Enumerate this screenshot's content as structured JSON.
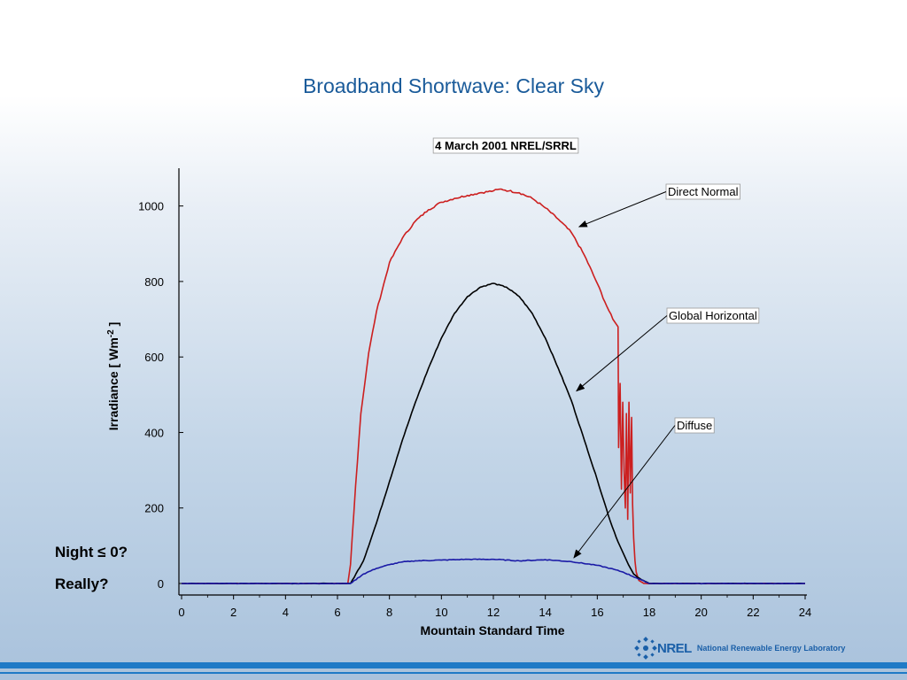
{
  "slide": {
    "title": "Broadband Shortwave:  Clear Sky",
    "notes": [
      "Night ≤ 0?",
      "Really?"
    ]
  },
  "logo": {
    "mark": "NREL",
    "text": "National Renewable Energy Laboratory",
    "color": "#1a5fa8"
  },
  "chart_data": {
    "type": "line",
    "title": "4 March 2001  NREL/SRRL",
    "xlabel": "Mountain Standard Time",
    "ylabel_main": "Irradiance [ Wm",
    "ylabel_sup": "-2",
    "ylabel_tail": " ]",
    "xlim": [
      0,
      24
    ],
    "ylim": [
      0,
      1100
    ],
    "xticks": [
      0,
      2,
      4,
      6,
      8,
      10,
      12,
      14,
      16,
      18,
      20,
      22,
      24
    ],
    "yticks": [
      0,
      200,
      400,
      600,
      800,
      1000
    ],
    "grid": false,
    "series": [
      {
        "name": "Direct Normal",
        "color": "#cc1f1f",
        "x": [
          0,
          3,
          6.4,
          6.5,
          6.7,
          6.9,
          7.2,
          7.5,
          8,
          8.5,
          9,
          9.5,
          10,
          10.5,
          11,
          11.5,
          12,
          12.3,
          12.6,
          13,
          13.5,
          14,
          14.5,
          15,
          15.5,
          16,
          16.3,
          16.6,
          16.8,
          16.82,
          16.88,
          16.93,
          16.98,
          17.03,
          17.08,
          17.12,
          17.17,
          17.22,
          17.27,
          17.32,
          17.36,
          17.4,
          17.45,
          17.5,
          17.6,
          17.8,
          18.5,
          24
        ],
        "values": [
          0,
          0,
          0,
          50,
          260,
          450,
          610,
          720,
          850,
          915,
          960,
          990,
          1010,
          1020,
          1028,
          1035,
          1040,
          1045,
          1040,
          1035,
          1020,
          995,
          965,
          930,
          870,
          795,
          745,
          700,
          680,
          360,
          530,
          250,
          480,
          300,
          200,
          450,
          170,
          480,
          240,
          440,
          210,
          120,
          60,
          30,
          8,
          0,
          0,
          0
        ]
      },
      {
        "name": "Global Horizontal",
        "color": "#000000",
        "x": [
          0,
          3,
          6.5,
          7,
          7.5,
          8,
          8.5,
          9,
          9.5,
          10,
          10.5,
          11,
          11.5,
          12,
          12.5,
          13,
          13.5,
          14,
          14.5,
          15,
          15.5,
          16,
          16.5,
          16.8,
          17,
          17.2,
          17.4,
          17.7,
          18,
          24
        ],
        "values": [
          0,
          0,
          0,
          60,
          160,
          270,
          380,
          480,
          570,
          650,
          715,
          760,
          785,
          795,
          785,
          760,
          715,
          650,
          570,
          485,
          380,
          275,
          165,
          110,
          80,
          50,
          25,
          10,
          0,
          0
        ]
      },
      {
        "name": "Diffuse",
        "color": "#1a1aa6",
        "x": [
          0,
          3,
          6.5,
          7,
          7.5,
          8,
          8.5,
          9,
          10,
          11,
          12,
          13,
          14,
          15,
          16,
          16.5,
          17,
          17.5,
          18,
          24
        ],
        "values": [
          0,
          0,
          0,
          25,
          40,
          50,
          57,
          60,
          62,
          64,
          64,
          60,
          63,
          58,
          48,
          40,
          30,
          15,
          0,
          0
        ]
      }
    ],
    "annotations": [
      {
        "label": "Direct Normal",
        "target_x": 15.3,
        "target_y": 945
      },
      {
        "label": "Global Horizontal",
        "target_x": 15.2,
        "target_y": 510
      },
      {
        "label": "Diffuse",
        "target_x": 15.1,
        "target_y": 68
      }
    ]
  }
}
